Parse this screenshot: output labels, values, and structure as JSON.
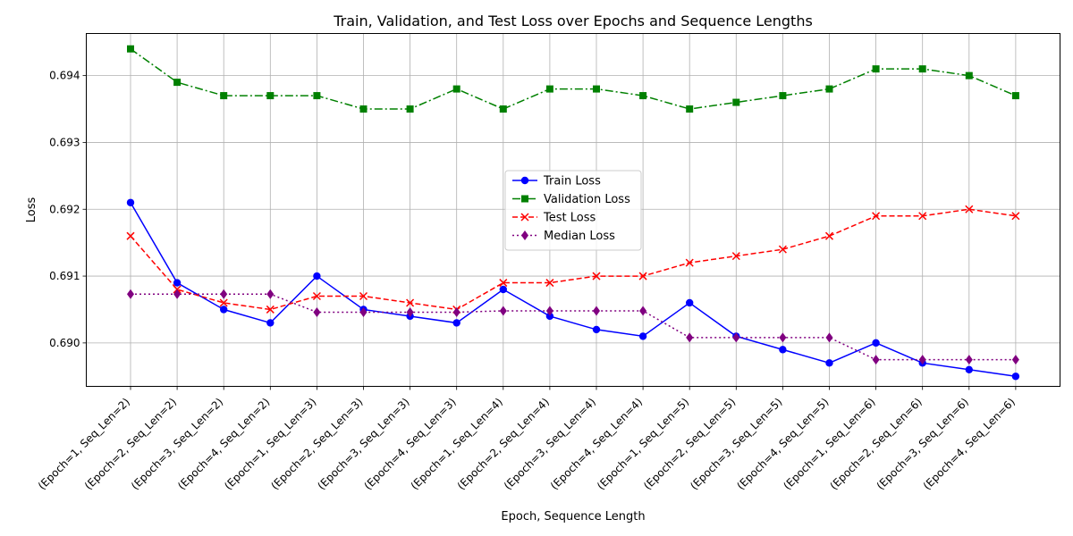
{
  "chart_data": {
    "type": "line",
    "title": "Train, Validation, and Test Loss over Epochs and Sequence Lengths",
    "xlabel": "Epoch, Sequence Length",
    "ylabel": "Loss",
    "categories": [
      "(Epoch=1, Seq_Len=2)",
      "(Epoch=2, Seq_Len=2)",
      "(Epoch=3, Seq_Len=2)",
      "(Epoch=4, Seq_Len=2)",
      "(Epoch=1, Seq_Len=3)",
      "(Epoch=2, Seq_Len=3)",
      "(Epoch=3, Seq_Len=3)",
      "(Epoch=4, Seq_Len=3)",
      "(Epoch=1, Seq_Len=4)",
      "(Epoch=2, Seq_Len=4)",
      "(Epoch=3, Seq_Len=4)",
      "(Epoch=4, Seq_Len=4)",
      "(Epoch=1, Seq_Len=5)",
      "(Epoch=2, Seq_Len=5)",
      "(Epoch=3, Seq_Len=5)",
      "(Epoch=4, Seq_Len=5)",
      "(Epoch=1, Seq_Len=6)",
      "(Epoch=2, Seq_Len=6)",
      "(Epoch=3, Seq_Len=6)",
      "(Epoch=4, Seq_Len=6)"
    ],
    "yticks": [
      "0.690",
      "0.691",
      "0.692",
      "0.693",
      "0.694"
    ],
    "ylim": [
      0.68935,
      0.69463
    ],
    "grid": true,
    "legend_position": "center",
    "series": [
      {
        "name": "Train Loss",
        "color": "#0000ff",
        "linestyle": "solid",
        "marker": "circle",
        "values": [
          0.6921,
          0.6909,
          0.6905,
          0.6903,
          0.691,
          0.6905,
          0.6904,
          0.6903,
          0.6908,
          0.6904,
          0.6902,
          0.6901,
          0.6906,
          0.6901,
          0.6899,
          0.6897,
          0.69,
          0.6897,
          0.6896,
          0.6895
        ]
      },
      {
        "name": "Validation Loss",
        "color": "#008000",
        "linestyle": "dashdot",
        "marker": "square",
        "values": [
          0.6944,
          0.6939,
          0.6937,
          0.6937,
          0.6937,
          0.6935,
          0.6935,
          0.6938,
          0.6935,
          0.6938,
          0.6938,
          0.6937,
          0.6935,
          0.6936,
          0.6937,
          0.6938,
          0.6941,
          0.6941,
          0.694,
          0.6937
        ]
      },
      {
        "name": "Test Loss",
        "color": "#ff0000",
        "linestyle": "dashed",
        "marker": "x",
        "values": [
          0.6916,
          0.6908,
          0.6906,
          0.6905,
          0.6907,
          0.6907,
          0.6906,
          0.6905,
          0.6909,
          0.6909,
          0.691,
          0.691,
          0.6912,
          0.6913,
          0.6914,
          0.6916,
          0.6919,
          0.6919,
          0.692,
          0.6919
        ]
      },
      {
        "name": "Median Loss",
        "color": "#800080",
        "linestyle": "dotted",
        "marker": "diamond",
        "values": [
          0.69073,
          0.69073,
          0.69073,
          0.69073,
          0.69046,
          0.69046,
          0.69046,
          0.69046,
          0.69048,
          0.69048,
          0.69048,
          0.69048,
          0.69008,
          0.69008,
          0.69008,
          0.69008,
          0.68975,
          0.68975,
          0.68975,
          0.68975
        ]
      }
    ]
  }
}
